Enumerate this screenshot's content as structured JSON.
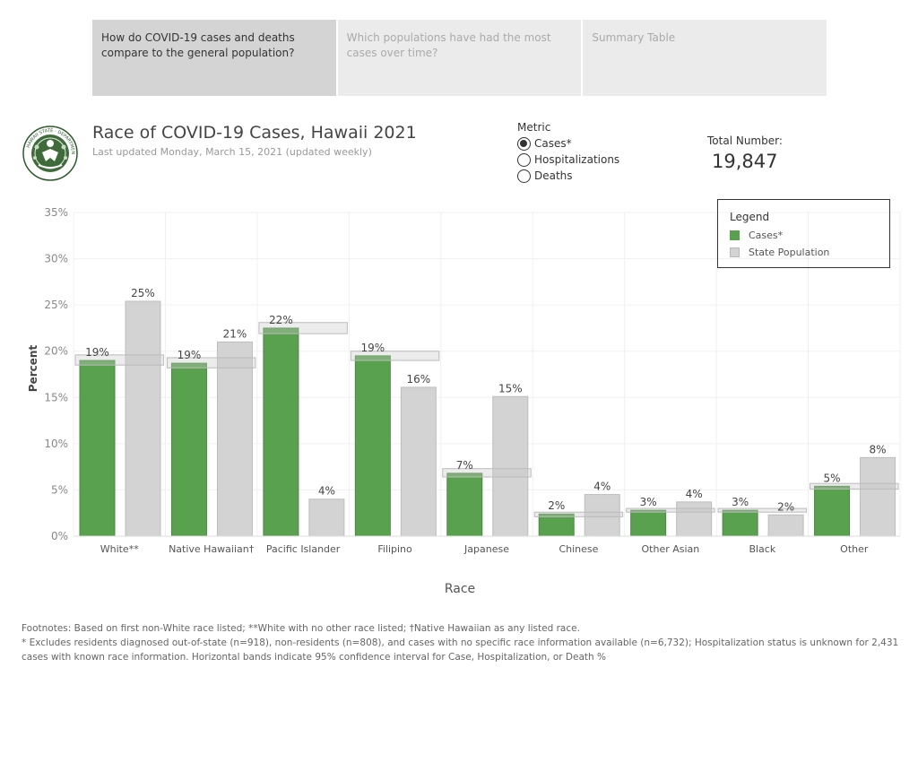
{
  "tabs": [
    {
      "label": "How do COVID-19 cases and deaths compare to the general population?",
      "active": true
    },
    {
      "label": "Which populations have had the most cases over time?",
      "active": false
    },
    {
      "label": "Summary Table",
      "active": false
    }
  ],
  "header": {
    "title": "Race of COVID-19 Cases, Hawaii 2021",
    "updated": "Last updated Monday, March 15, 2021 (updated weekly)",
    "seal_text": "HAWAII STATE · DEPARTMENT OF HEALTH"
  },
  "metric": {
    "label": "Metric",
    "options": [
      {
        "label": "Cases*",
        "selected": true
      },
      {
        "label": "Hospitalizations",
        "selected": false
      },
      {
        "label": "Deaths",
        "selected": false
      }
    ]
  },
  "total": {
    "label": "Total Number:",
    "value": "19,847"
  },
  "legend": {
    "title": "Legend",
    "items": [
      {
        "label": "Cases*",
        "color": "#59a14f"
      },
      {
        "label": "State Population",
        "color": "#d3d3d3"
      }
    ]
  },
  "chart_data": {
    "type": "bar",
    "xlabel": "Race",
    "ylabel": "Percent",
    "ylim": [
      0,
      35
    ],
    "yticks": [
      "0%",
      "5%",
      "10%",
      "15%",
      "20%",
      "25%",
      "30%",
      "35%"
    ],
    "categories": [
      "White**",
      "Native Hawaiian†",
      "Pacific Islander",
      "Filipino",
      "Japanese",
      "Chinese",
      "Other Asian",
      "Black",
      "Other"
    ],
    "series": [
      {
        "name": "Cases*",
        "color": "#59a14f",
        "values": [
          19,
          18.7,
          22.5,
          19.5,
          6.8,
          2.4,
          2.8,
          2.8,
          5.4
        ],
        "labels": [
          "19%",
          "19%",
          "22%",
          "19%",
          "7%",
          "2%",
          "3%",
          "3%",
          "5%"
        ],
        "ci": [
          [
            18.5,
            19.6
          ],
          [
            18.2,
            19.3
          ],
          [
            21.9,
            23.1
          ],
          [
            19.0,
            20.0
          ],
          [
            6.4,
            7.3
          ],
          [
            2.1,
            2.6
          ],
          [
            2.6,
            3.0
          ],
          [
            2.6,
            3.0
          ],
          [
            5.1,
            5.7
          ]
        ]
      },
      {
        "name": "State Population",
        "color": "#d3d3d3",
        "values": [
          25.4,
          21,
          4,
          16.1,
          15.1,
          4.5,
          3.7,
          2.3,
          8.5
        ],
        "labels": [
          "25%",
          "21%",
          "4%",
          "16%",
          "15%",
          "4%",
          "4%",
          "2%",
          "8%"
        ]
      }
    ],
    "grid": true,
    "legend_position": "top-right"
  },
  "footnotes": {
    "line1": "Footnotes: Based on first non-White race listed; **White with no other race listed; †Native Hawaiian as any listed race.",
    "line2": "* Excludes residents diagnosed out-of-state (n=918), non-residents (n=808), and cases with no specific race information available (n=6,732); Hospitalization status is unknown for 2,431 cases with known race information. Horizontal bands indicate 95% confidence interval for Case, Hospitalization, or Death %"
  }
}
